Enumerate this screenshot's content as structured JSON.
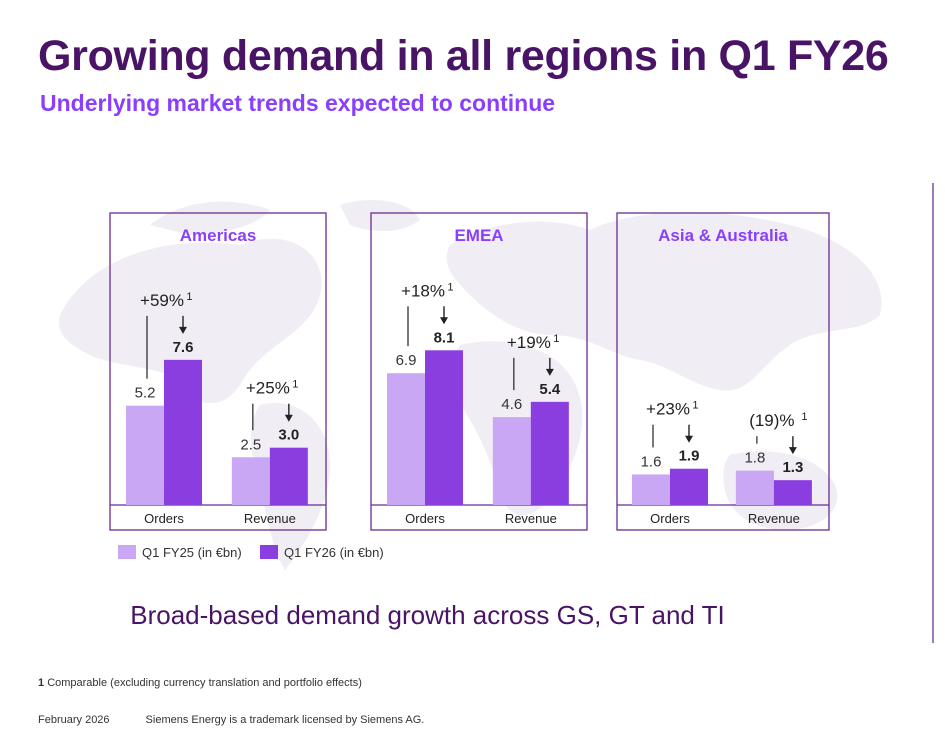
{
  "header": {
    "title": "Growing demand in all regions in Q1 FY26",
    "subtitle": "Underlying market trends expected to continue"
  },
  "chart_data": {
    "type": "bar",
    "unit": "€bn",
    "legend": [
      {
        "name": "Q1 FY25 (in €bn)",
        "color": "#c9a7f5"
      },
      {
        "name": "Q1 FY26 (in €bn)",
        "color": "#8a3ee0"
      }
    ],
    "regions": [
      {
        "name": "Americas",
        "groups": [
          {
            "category": "Orders",
            "q1fy25": "5.2",
            "q1fy26": "7.6",
            "growth": "+59%",
            "sup": "1"
          },
          {
            "category": "Revenue",
            "q1fy25": "2.5",
            "q1fy26": "3.0",
            "growth": "+25%",
            "sup": "1"
          }
        ]
      },
      {
        "name": "EMEA",
        "groups": [
          {
            "category": "Orders",
            "q1fy25": "6.9",
            "q1fy26": "8.1",
            "growth": "+18%",
            "sup": "1"
          },
          {
            "category": "Revenue",
            "q1fy25": "4.6",
            "q1fy26": "5.4",
            "growth": "+19%",
            "sup": "1"
          }
        ]
      },
      {
        "name": "Asia & Australia",
        "groups": [
          {
            "category": "Orders",
            "q1fy25": "1.6",
            "q1fy26": "1.9",
            "growth": "+23%",
            "sup": "1"
          },
          {
            "category": "Revenue",
            "q1fy25": "1.8",
            "q1fy26": "1.3",
            "growth": "(19)%",
            "sup": "1"
          }
        ]
      }
    ]
  },
  "tagline": "Broad-based demand growth across GS, GT and TI",
  "footnote": {
    "marker": "1",
    "text": "Comparable (excluding currency translation and portfolio effects)"
  },
  "footer": {
    "date": "February 2026",
    "disclaimer": "Siemens Energy is a trademark licensed by Siemens AG."
  }
}
